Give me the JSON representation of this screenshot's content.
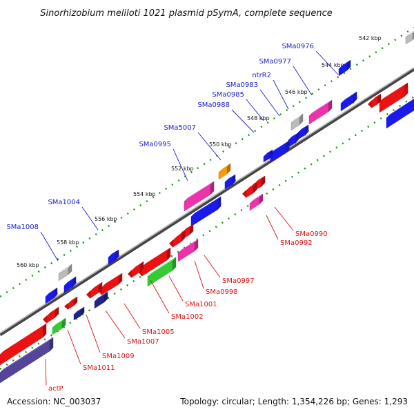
{
  "title": "Sinorhizobium meliloti 1021 plasmid pSymA, complete sequence",
  "footer": {
    "accession": "Accession: NC_003037",
    "topology": "Topology: circular; Length: 1,354,226 bp; Genes: 1,293"
  },
  "ticks": [
    "542 kbp",
    "544 kbp",
    "546 kbp",
    "548 kbp",
    "550 kbp",
    "552 kbp",
    "554 kbp",
    "556 kbp",
    "558 kbp",
    "560 kbp"
  ],
  "forward_genes": [
    "SMa0976",
    "SMa0977",
    "ntrR2",
    "SMa0983",
    "SMa0985",
    "SMa0988",
    "SMa5007",
    "SMa0995",
    "SMa1004",
    "SMa1008"
  ],
  "reverse_genes": [
    "SMa0990",
    "SMa0992",
    "SMa0997",
    "SMa0998",
    "SMa1001",
    "SMa1002",
    "SMa1005",
    "SMa1007",
    "SMa1009",
    "SMa1011",
    "actP"
  ],
  "colors": {
    "forward_label": "#1a1acc",
    "reverse_label": "#dd1111",
    "backbone": "#888888",
    "tick_marks": "#119911",
    "red": "#ee1111",
    "blue": "#1a1aee",
    "pink": "#ee33aa",
    "green": "#33cc33",
    "gray": "#bbbbbb",
    "orange": "#ff9900",
    "navy": "#222288",
    "purple": "#554499"
  }
}
